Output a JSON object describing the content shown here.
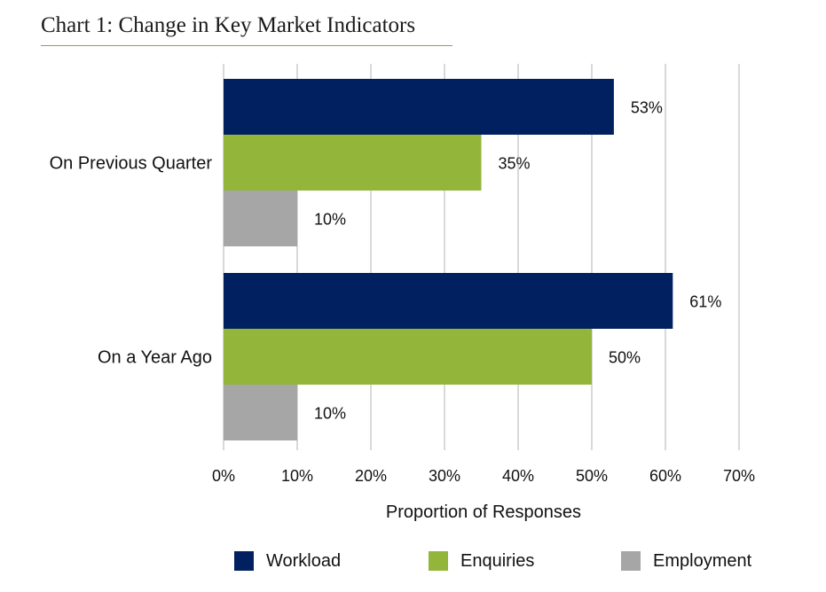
{
  "title": "Chart 1: Change in Key Market Indicators",
  "chart_data": {
    "type": "bar",
    "orientation": "horizontal",
    "title": "Chart 1: Change in Key Market Indicators",
    "xlabel": "Proportion of Responses",
    "ylabel": "",
    "xlim": [
      0,
      70
    ],
    "x_ticks": [
      "0%",
      "10%",
      "20%",
      "30%",
      "40%",
      "50%",
      "60%",
      "70%"
    ],
    "grid": true,
    "legend_position": "bottom",
    "categories": [
      "On Previous Quarter",
      "On a Year Ago"
    ],
    "series": [
      {
        "name": "Workload",
        "color": "#002060",
        "values": [
          53,
          61
        ],
        "labels": [
          "53%",
          "61%"
        ]
      },
      {
        "name": "Enquiries",
        "color": "#92b53a",
        "values": [
          35,
          50
        ],
        "labels": [
          "35%",
          "50%"
        ]
      },
      {
        "name": "Employment",
        "color": "#a6a6a6",
        "values": [
          10,
          10
        ],
        "labels": [
          "10%",
          "10%"
        ]
      }
    ]
  }
}
